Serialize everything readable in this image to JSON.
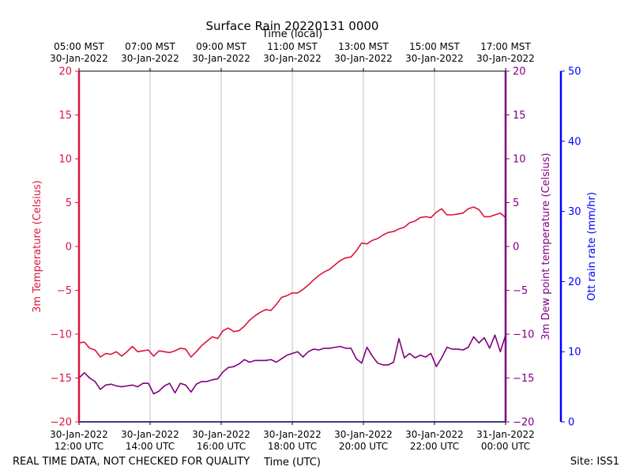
{
  "chart_data": {
    "type": "line",
    "title": "Surface Rain 20220131 0000",
    "top_xlabel": "Time (local)",
    "xlabel": "Time (UTC)",
    "footer_left": "REAL TIME DATA, NOT CHECKED FOR QUALITY",
    "footer_right": "Site: ISS1",
    "x_range_hours": [
      0,
      12
    ],
    "bottom_ticks": [
      {
        "hour": 0,
        "line1": "30-Jan-2022",
        "line2": "12:00 UTC"
      },
      {
        "hour": 2,
        "line1": "30-Jan-2022",
        "line2": "14:00 UTC"
      },
      {
        "hour": 4,
        "line1": "30-Jan-2022",
        "line2": "16:00 UTC"
      },
      {
        "hour": 6,
        "line1": "30-Jan-2022",
        "line2": "18:00 UTC"
      },
      {
        "hour": 8,
        "line1": "30-Jan-2022",
        "line2": "20:00 UTC"
      },
      {
        "hour": 10,
        "line1": "30-Jan-2022",
        "line2": "22:00 UTC"
      },
      {
        "hour": 12,
        "line1": "31-Jan-2022",
        "line2": "00:00 UTC"
      }
    ],
    "top_ticks": [
      {
        "hour": 0,
        "line1": "05:00 MST",
        "line2": "30-Jan-2022"
      },
      {
        "hour": 2,
        "line1": "07:00 MST",
        "line2": "30-Jan-2022"
      },
      {
        "hour": 4,
        "line1": "09:00 MST",
        "line2": "30-Jan-2022"
      },
      {
        "hour": 6,
        "line1": "11:00 MST",
        "line2": "30-Jan-2022"
      },
      {
        "hour": 8,
        "line1": "13:00 MST",
        "line2": "30-Jan-2022"
      },
      {
        "hour": 10,
        "line1": "15:00 MST",
        "line2": "30-Jan-2022"
      },
      {
        "hour": 12,
        "line1": "17:00 MST",
        "line2": "30-Jan-2022"
      }
    ],
    "axes": {
      "temperature": {
        "label": "3m Temperature (Celsius)",
        "ylim": [
          -20,
          20
        ],
        "ticks": [
          -20,
          -15,
          -10,
          -5,
          0,
          5,
          10,
          15,
          20
        ],
        "color": "#dc143c"
      },
      "dewpoint": {
        "label": "3m Dew point temperature (Celsius)",
        "ylim": [
          -20,
          20
        ],
        "ticks": [
          -20,
          -15,
          -10,
          -5,
          0,
          5,
          10,
          15,
          20
        ],
        "color": "#800080"
      },
      "rain": {
        "label": "Ott rain rate (mm/hr)",
        "ylim": [
          0,
          50
        ],
        "ticks": [
          0,
          10,
          20,
          30,
          40,
          50
        ],
        "color": "#0000ff"
      }
    },
    "series": [
      {
        "name": "3m Temperature",
        "axis": "temperature",
        "color": "#dc143c",
        "x": [
          0,
          0.15,
          0.3,
          0.45,
          0.6,
          0.75,
          0.9,
          1.05,
          1.2,
          1.35,
          1.5,
          1.65,
          1.8,
          1.95,
          2.1,
          2.25,
          2.4,
          2.55,
          2.7,
          2.85,
          3.0,
          3.15,
          3.3,
          3.45,
          3.6,
          3.75,
          3.9,
          4.05,
          4.2,
          4.35,
          4.5,
          4.65,
          4.8,
          4.95,
          5.1,
          5.25,
          5.4,
          5.55,
          5.7,
          5.85,
          6.0,
          6.15,
          6.3,
          6.45,
          6.6,
          6.75,
          6.9,
          7.05,
          7.2,
          7.35,
          7.5,
          7.65,
          7.8,
          7.95,
          8.1,
          8.25,
          8.4,
          8.55,
          8.7,
          8.85,
          9.0,
          9.15,
          9.3,
          9.45,
          9.6,
          9.75,
          9.9,
          10.05,
          10.2,
          10.35,
          10.5,
          10.65,
          10.8,
          10.95,
          11.1,
          11.25,
          11.4,
          11.55,
          11.7,
          11.85,
          12.0
        ],
        "values": [
          -11.0,
          -10.9,
          -11.6,
          -11.8,
          -12.6,
          -12.2,
          -12.3,
          -12.0,
          -12.5,
          -12.0,
          -11.4,
          -12.0,
          -11.9,
          -11.8,
          -12.5,
          -11.9,
          -12.0,
          -12.1,
          -11.9,
          -11.6,
          -11.7,
          -12.6,
          -12.0,
          -11.3,
          -10.8,
          -10.3,
          -10.5,
          -9.6,
          -9.3,
          -9.7,
          -9.6,
          -9.1,
          -8.4,
          -7.9,
          -7.5,
          -7.2,
          -7.3,
          -6.6,
          -5.8,
          -5.6,
          -5.3,
          -5.3,
          -4.9,
          -4.4,
          -3.8,
          -3.3,
          -2.9,
          -2.6,
          -2.1,
          -1.6,
          -1.3,
          -1.2,
          -0.5,
          0.4,
          0.3,
          0.7,
          0.9,
          1.3,
          1.6,
          1.7,
          2.0,
          2.2,
          2.7,
          2.9,
          3.3,
          3.4,
          3.3,
          3.9,
          4.3,
          3.6,
          3.6,
          3.7,
          3.8,
          4.3,
          4.5,
          4.2,
          3.4,
          3.4,
          3.6,
          3.8,
          3.3
        ]
      },
      {
        "name": "3m Dew point temperature",
        "axis": "dewpoint",
        "color": "#800080",
        "x": [
          0,
          0.15,
          0.3,
          0.45,
          0.6,
          0.75,
          0.9,
          1.05,
          1.2,
          1.35,
          1.5,
          1.65,
          1.8,
          1.95,
          2.1,
          2.25,
          2.4,
          2.55,
          2.7,
          2.85,
          3.0,
          3.15,
          3.3,
          3.45,
          3.6,
          3.75,
          3.9,
          4.05,
          4.2,
          4.35,
          4.5,
          4.65,
          4.8,
          4.95,
          5.1,
          5.25,
          5.4,
          5.55,
          5.7,
          5.85,
          6.0,
          6.15,
          6.3,
          6.45,
          6.6,
          6.75,
          6.9,
          7.05,
          7.2,
          7.35,
          7.5,
          7.65,
          7.8,
          7.95,
          8.1,
          8.25,
          8.4,
          8.55,
          8.7,
          8.85,
          9.0,
          9.15,
          9.3,
          9.45,
          9.6,
          9.75,
          9.9,
          10.05,
          10.2,
          10.35,
          10.5,
          10.65,
          10.8,
          10.95,
          11.1,
          11.25,
          11.4,
          11.55,
          11.7,
          11.85,
          12.0
        ],
        "values": [
          -15.0,
          -14.4,
          -15.0,
          -15.4,
          -16.3,
          -15.8,
          -15.7,
          -15.9,
          -16.0,
          -15.9,
          -15.8,
          -16.0,
          -15.6,
          -15.6,
          -16.8,
          -16.5,
          -15.9,
          -15.6,
          -16.7,
          -15.6,
          -15.8,
          -16.6,
          -15.7,
          -15.4,
          -15.4,
          -15.2,
          -15.1,
          -14.3,
          -13.8,
          -13.7,
          -13.4,
          -12.9,
          -13.2,
          -13.0,
          -13.0,
          -13.0,
          -12.9,
          -13.2,
          -12.8,
          -12.4,
          -12.2,
          -12.0,
          -12.6,
          -12.0,
          -11.7,
          -11.8,
          -11.6,
          -11.6,
          -11.5,
          -11.4,
          -11.6,
          -11.6,
          -12.8,
          -13.3,
          -11.5,
          -12.5,
          -13.3,
          -13.5,
          -13.5,
          -13.2,
          -10.5,
          -12.7,
          -12.2,
          -12.7,
          -12.4,
          -12.6,
          -12.2,
          -13.7,
          -12.7,
          -11.5,
          -11.7,
          -11.7,
          -11.8,
          -11.5,
          -10.3,
          -11.0,
          -10.4,
          -11.6,
          -10.1,
          -12.0,
          -10.1
        ]
      },
      {
        "name": "Ott rain rate",
        "axis": "rain",
        "color": "#0000ff",
        "x": [
          0,
          12
        ],
        "values": [
          0,
          0
        ]
      }
    ]
  }
}
